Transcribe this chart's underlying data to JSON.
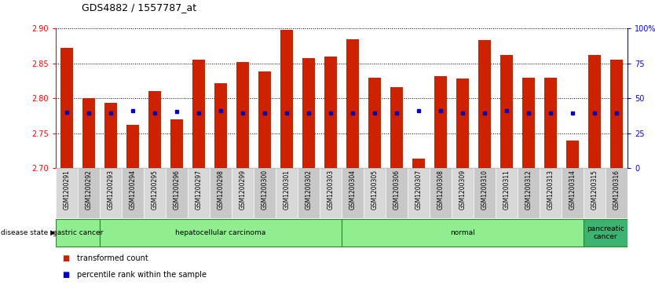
{
  "title": "GDS4882 / 1557787_at",
  "samples": [
    "GSM1200291",
    "GSM1200292",
    "GSM1200293",
    "GSM1200294",
    "GSM1200295",
    "GSM1200296",
    "GSM1200297",
    "GSM1200298",
    "GSM1200299",
    "GSM1200300",
    "GSM1200301",
    "GSM1200302",
    "GSM1200303",
    "GSM1200304",
    "GSM1200305",
    "GSM1200306",
    "GSM1200307",
    "GSM1200308",
    "GSM1200309",
    "GSM1200310",
    "GSM1200311",
    "GSM1200312",
    "GSM1200313",
    "GSM1200314",
    "GSM1200315",
    "GSM1200316"
  ],
  "red_values": [
    2.872,
    2.8,
    2.793,
    2.762,
    2.81,
    2.77,
    2.855,
    2.822,
    2.852,
    2.838,
    2.898,
    2.858,
    2.86,
    2.885,
    2.83,
    2.816,
    2.714,
    2.832,
    2.828,
    2.884,
    2.862,
    2.83,
    2.83,
    2.74,
    2.862,
    2.855
  ],
  "blue_values": [
    2.7795,
    2.7793,
    2.7793,
    2.782,
    2.7793,
    2.781,
    2.7793,
    2.782,
    2.7793,
    2.7793,
    2.7793,
    2.7793,
    2.7793,
    2.7793,
    2.7793,
    2.7793,
    2.782,
    2.782,
    2.7793,
    2.7793,
    2.782,
    2.7793,
    2.7793,
    2.7793,
    2.7793,
    2.7793
  ],
  "disease_groups": [
    {
      "label": "gastric cancer",
      "start": 0,
      "end": 2
    },
    {
      "label": "hepatocellular carcinoma",
      "start": 2,
      "end": 13
    },
    {
      "label": "normal",
      "start": 13,
      "end": 24
    },
    {
      "label": "pancreatic\ncancer",
      "start": 24,
      "end": 26
    }
  ],
  "group_colors": [
    "#90EE90",
    "#90EE90",
    "#90EE90",
    "#3CB371"
  ],
  "group_border": "#228B22",
  "ylim_left": [
    2.7,
    2.9
  ],
  "ylim_right": [
    0,
    100
  ],
  "bar_color": "#CC2200",
  "dot_color": "#0000CC",
  "yticks_left": [
    2.7,
    2.75,
    2.8,
    2.85,
    2.9
  ],
  "yticks_right": [
    0,
    25,
    50,
    75,
    100
  ],
  "xtick_bg_even": "#d8d8d8",
  "xtick_bg_odd": "#c8c8c8"
}
